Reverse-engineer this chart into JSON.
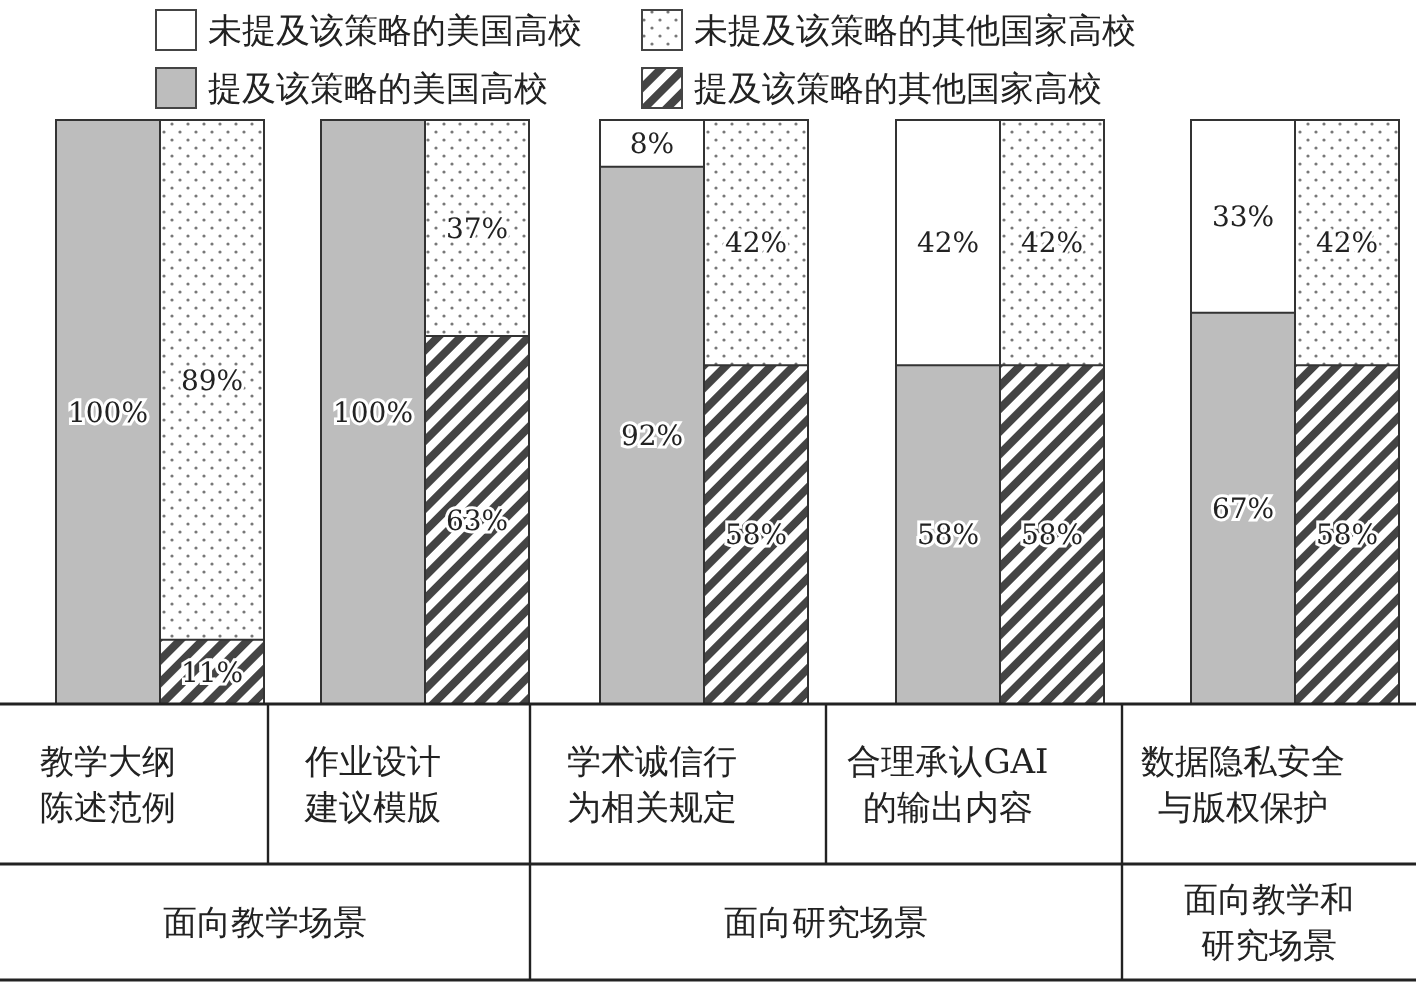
{
  "chart_data": {
    "type": "bar",
    "stacked": true,
    "legend": "top",
    "ylim": [
      0,
      100
    ],
    "categories": [
      "教学大纲陈述范例",
      null,
      "作业设计建议模版",
      null,
      "学术诚信行为相关规定",
      null,
      "合理承认GAI的输出内容",
      null,
      "数据隐私安全与版权保护",
      null
    ],
    "series": [
      {
        "name": "提及该策略的美国高校",
        "color": "#bdbdbd",
        "values": [
          100,
          null,
          100,
          null,
          92,
          null,
          58,
          null,
          67,
          null
        ],
        "value_labels": [
          "100%",
          null,
          "100%",
          null,
          "92%",
          null,
          "58%",
          null,
          "67%",
          null
        ]
      },
      {
        "name": "未提及该策略的美国高校",
        "color": "#ffffff",
        "values": [
          0,
          null,
          0,
          null,
          8,
          null,
          42,
          null,
          33,
          null
        ],
        "value_labels": [
          null,
          null,
          null,
          null,
          "8%",
          null,
          "42%",
          null,
          "33%",
          null
        ]
      },
      {
        "name": "提及该策略的其他国家高校",
        "color": "#444444",
        "values": [
          null,
          11,
          null,
          63,
          null,
          58,
          null,
          58,
          null,
          58
        ],
        "value_labels": [
          null,
          "11%",
          null,
          "63%",
          null,
          "58%",
          null,
          "58%",
          null,
          "58%"
        ]
      },
      {
        "name": "未提及该策略的其他国家高校",
        "color": "#ffffff",
        "values": [
          null,
          89,
          null,
          37,
          null,
          42,
          null,
          42,
          null,
          42
        ],
        "value_labels": [
          null,
          "89%",
          null,
          "37%",
          null,
          "42%",
          null,
          "42%",
          null,
          "42%"
        ]
      }
    ],
    "annotations": [
      "面向教学场景",
      "面向研究场景",
      "面向教学和研究场景"
    ]
  }
}
